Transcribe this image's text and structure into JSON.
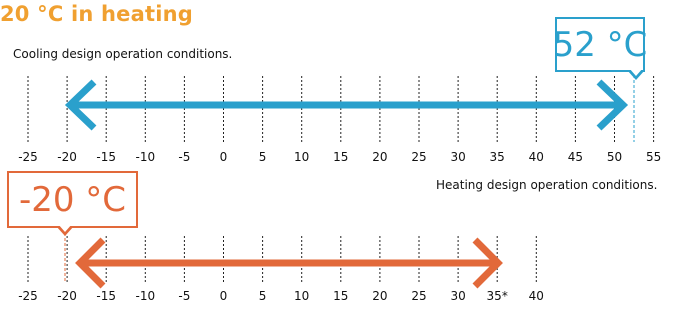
{
  "header": {
    "title": "20 °C in heating"
  },
  "cooling": {
    "label": "Cooling design operation conditions.",
    "callout": "52 °C",
    "range_min": -20,
    "range_max": 52,
    "ticks": [
      "-25",
      "-20",
      "-15",
      "-10",
      "-5",
      "0",
      "5",
      "10",
      "15",
      "20",
      "25",
      "30",
      "35",
      "40",
      "45",
      "50",
      "55"
    ],
    "color": "#2aa0cc"
  },
  "heating": {
    "label": "Heating design operation conditions.",
    "callout": "-20 °C",
    "range_min": -20,
    "range_max": 35,
    "ticks": [
      "-25",
      "-20",
      "-15",
      "-10",
      "-5",
      "0",
      "5",
      "10",
      "15",
      "20",
      "25",
      "30",
      "35*",
      "40"
    ],
    "color": "#e2693a"
  }
}
